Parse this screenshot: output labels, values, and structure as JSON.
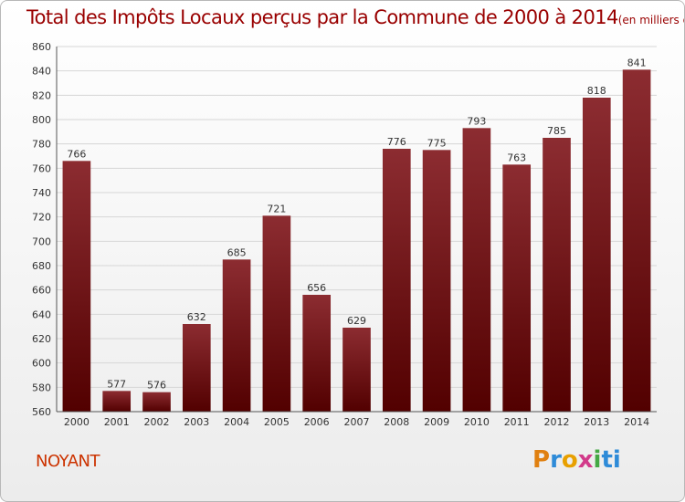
{
  "title": "Total des Impôts Locaux perçus par la Commune de 2000 à 2014",
  "title_unit": "(en milliers d'€)",
  "commune": "NOYANT",
  "logo": [
    "P",
    "r",
    "o",
    "x",
    "i",
    "ti"
  ],
  "colors": {
    "bar_top": "#8c2c31",
    "bar_bottom": "#520000",
    "title": "#990000",
    "commune": "#cc3300"
  },
  "chart_data": {
    "type": "bar",
    "title": "Total des Impôts Locaux perçus par la Commune de 2000 à 2014",
    "xlabel": "",
    "ylabel": "",
    "categories": [
      "2000",
      "2001",
      "2002",
      "2003",
      "2004",
      "2005",
      "2006",
      "2007",
      "2008",
      "2009",
      "2010",
      "2011",
      "2012",
      "2013",
      "2014"
    ],
    "values": [
      766,
      577,
      576,
      632,
      685,
      721,
      656,
      629,
      776,
      775,
      793,
      763,
      785,
      818,
      841
    ],
    "ylim": [
      560,
      860
    ],
    "yticks": [
      560,
      580,
      600,
      620,
      640,
      660,
      680,
      700,
      720,
      740,
      760,
      780,
      800,
      820,
      840,
      860
    ],
    "grid": true
  }
}
